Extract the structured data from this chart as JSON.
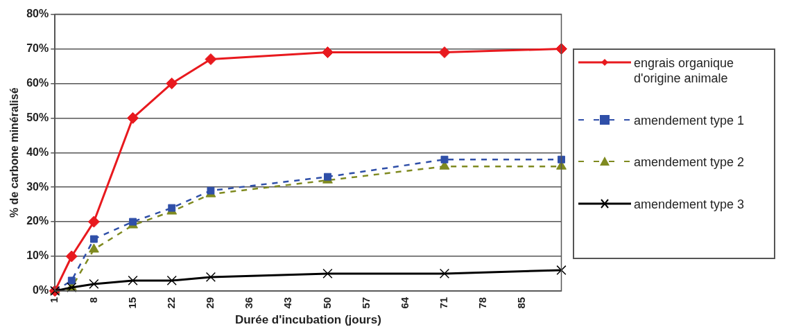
{
  "chart_data": {
    "type": "line",
    "xlabel": "Durée d'incubation (jours)",
    "ylabel": "% de carbone minéralisé",
    "x": [
      1,
      4,
      8,
      15,
      22,
      29,
      50,
      71,
      92
    ],
    "xlim": [
      1,
      92
    ],
    "xticks": [
      1,
      8,
      15,
      22,
      29,
      36,
      43,
      50,
      57,
      64,
      71,
      78,
      85
    ],
    "ylim": [
      0,
      80
    ],
    "yticks": [
      {
        "value": 0,
        "label": "0%"
      },
      {
        "value": 10,
        "label": "10%"
      },
      {
        "value": 20,
        "label": "20%"
      },
      {
        "value": 30,
        "label": "30%"
      },
      {
        "value": 40,
        "label": "40%"
      },
      {
        "value": 50,
        "label": "50%"
      },
      {
        "value": 60,
        "label": "60%"
      },
      {
        "value": 70,
        "label": "70%"
      },
      {
        "value": 80,
        "label": "80%"
      }
    ],
    "grid": "y",
    "legend": "right",
    "series": [
      {
        "name": "engrais organique d'origine animale",
        "color": "#e8191e",
        "marker": "diamond",
        "line_style": "solid",
        "values": [
          0,
          10,
          20,
          50,
          60,
          67,
          69,
          69,
          70
        ]
      },
      {
        "name": "amendement type 1",
        "color": "#2f4fa8",
        "marker": "square",
        "line_style": "dashed",
        "values": [
          0,
          3,
          15,
          20,
          24,
          29,
          33,
          38,
          38
        ]
      },
      {
        "name": "amendement type 2",
        "color": "#7f8a20",
        "marker": "triangle",
        "line_style": "dashed",
        "values": [
          0,
          1,
          12,
          19,
          23,
          28,
          32,
          36,
          36
        ]
      },
      {
        "name": "amendement type 3",
        "color": "#000000",
        "marker": "cross",
        "line_style": "solid",
        "values": [
          0,
          1,
          2,
          3,
          3,
          4,
          5,
          5,
          6
        ]
      }
    ]
  }
}
